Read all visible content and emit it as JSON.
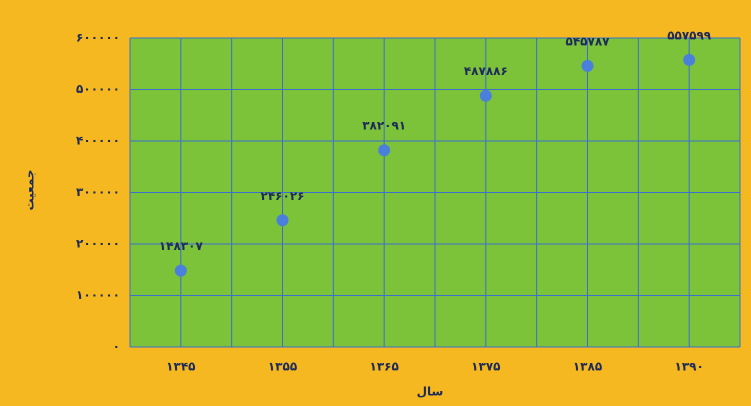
{
  "chart_data": {
    "type": "line",
    "x_label": "سال",
    "y_label": "جمعیت",
    "categories": [
      "۱۳۴۵",
      "۱۳۵۵",
      "۱۳۶۵",
      "۱۳۷۵",
      "۱۳۸۵",
      "۱۳۹۰"
    ],
    "series": [
      {
        "color": "#d9531e",
        "marker_color": "#4a80dc",
        "values": [
          148307,
          246026,
          382091,
          487886,
          545787,
          557599
        ],
        "value_labels": [
          "۱۴۸۳۰۷",
          "۲۴۶۰۲۶",
          "۳۸۲۰۹۱",
          "۴۸۷۸۸۶",
          "۵۴۵۷۸۷",
          "۵۵۷۵۹۹"
        ]
      }
    ],
    "ylim": [
      0,
      600000
    ],
    "yticks": [
      {
        "value": 0,
        "label": "۰"
      },
      {
        "value": 100000,
        "label": "۱۰۰۰۰۰"
      },
      {
        "value": 200000,
        "label": "۲۰۰۰۰۰"
      },
      {
        "value": 300000,
        "label": "۳۰۰۰۰۰"
      },
      {
        "value": 400000,
        "label": "۴۰۰۰۰۰"
      },
      {
        "value": 500000,
        "label": "۵۰۰۰۰۰"
      },
      {
        "value": 600000,
        "label": "۶۰۰۰۰۰"
      }
    ],
    "grid": true
  }
}
